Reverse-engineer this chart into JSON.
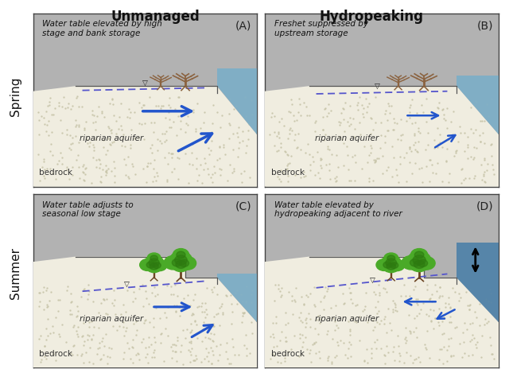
{
  "title_left": "Unmanaged",
  "title_right": "Hydropeaking",
  "label_spring": "Spring",
  "label_summer": "Summer",
  "panel_labels": [
    "(A)",
    "(B)",
    "(C)",
    "(D)"
  ],
  "panel_annotations": [
    "Water table elevated by high\nstage and bank storage",
    "Freshet suppressed by\nupstream storage",
    "Water table adjusts to\nseasonal low stage",
    "Water table elevated by\nhydropeaking adjacent to river"
  ],
  "aquifer_label": "riparian aquifer",
  "bedrock_label": "bedrock",
  "bedrock_color": "#b2b2b2",
  "aquifer_color": "#f0ede0",
  "aquifer_dot_color": "#c8c5aa",
  "water_color_A": "#7aaec8",
  "water_color_B": "#7aaec8",
  "water_color_C": "#7aaec8",
  "water_color_D": "#4a7fa8",
  "dashed_line_color": "#5555cc",
  "arrow_color": "#2255cc",
  "tree_bare_color": "#8B6340",
  "tree_green_color1": "#4aaa28",
  "tree_green_color2": "#2d7a10",
  "title_fontsize": 12,
  "row_label_fontsize": 11,
  "annotation_fontsize": 7.5,
  "panel_label_fontsize": 10,
  "text_label_fontsize": 7.5
}
